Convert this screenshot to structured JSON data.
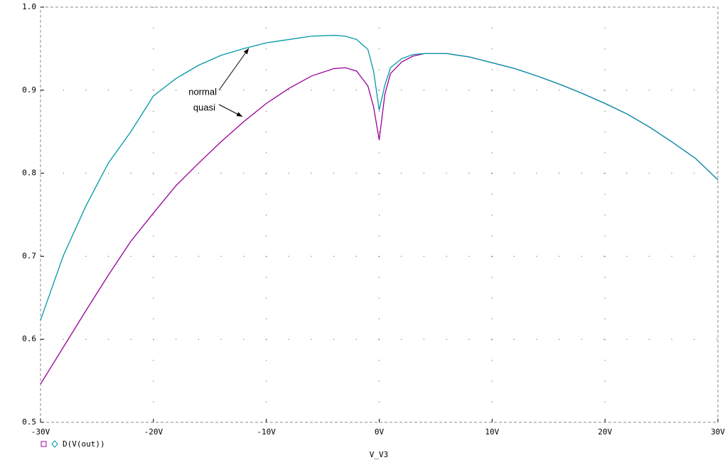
{
  "chart_data": {
    "type": "line",
    "x_label": "V_V3",
    "legend_label": "D(V(out))",
    "x": [
      -30,
      -28,
      -26,
      -24,
      -22,
      -20,
      -18,
      -16,
      -14,
      -12,
      -10,
      -8,
      -6,
      -4,
      -3,
      -2,
      -1,
      -0.5,
      0,
      0.5,
      1,
      2,
      3,
      4,
      5,
      6,
      8,
      10,
      12,
      14,
      16,
      18,
      20,
      22,
      24,
      26,
      28,
      30
    ],
    "series": [
      {
        "name": "quasi",
        "color": "#990099",
        "values": [
          0.546,
          0.59,
          0.634,
          0.677,
          0.718,
          0.752,
          0.785,
          0.812,
          0.838,
          0.862,
          0.884,
          0.902,
          0.917,
          0.926,
          0.927,
          0.923,
          0.905,
          0.88,
          0.84,
          0.895,
          0.92,
          0.934,
          0.941,
          0.944,
          0.944,
          0.944,
          0.94,
          0.933,
          0.926,
          0.917,
          0.907,
          0.896,
          0.884,
          0.871,
          0.855,
          0.837,
          0.818,
          0.792
        ]
      },
      {
        "name": "normal",
        "color": "#0099a6",
        "values": [
          0.623,
          0.7,
          0.76,
          0.812,
          0.85,
          0.893,
          0.914,
          0.93,
          0.942,
          0.95,
          0.957,
          0.961,
          0.965,
          0.966,
          0.965,
          0.961,
          0.949,
          0.923,
          0.876,
          0.906,
          0.927,
          0.938,
          0.943,
          0.944,
          0.944,
          0.944,
          0.94,
          0.933,
          0.926,
          0.917,
          0.907,
          0.896,
          0.884,
          0.871,
          0.855,
          0.837,
          0.818,
          0.792
        ]
      }
    ],
    "xlim": [
      -30,
      30
    ],
    "xticks": [
      {
        "value": -30,
        "label": "-30V"
      },
      {
        "value": -20,
        "label": "-20V"
      },
      {
        "value": -10,
        "label": "-10V"
      },
      {
        "value": 0,
        "label": "0V"
      },
      {
        "value": 10,
        "label": "10V"
      },
      {
        "value": 20,
        "label": "20V"
      },
      {
        "value": 30,
        "label": "30V"
      }
    ],
    "ylim": [
      0.5,
      1.0
    ],
    "yticks": [
      0.5,
      0.6,
      0.7,
      0.8,
      0.9,
      {
        "value": 1.0,
        "label": "1.0"
      }
    ],
    "grid": true
  }
}
